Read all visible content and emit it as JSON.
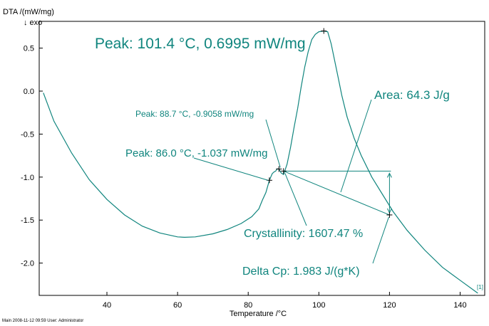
{
  "chart_data": {
    "type": "line",
    "ylabel": "DTA /(mW/mg)",
    "ylabel_sub": "↓ exo",
    "xlabel": "Temperature /°C",
    "xlim": [
      22,
      145
    ],
    "ylim": [
      -2.4,
      0.8
    ],
    "xticks": [
      40,
      60,
      80,
      100,
      120,
      140
    ],
    "xtick_labels": [
      "40",
      "60",
      "80",
      "100",
      "120",
      "140"
    ],
    "yticks": [
      0.5,
      0.0,
      -0.5,
      -1.0,
      -1.5,
      -2.0
    ],
    "ytick_labels": [
      "0.5",
      "0.0",
      "-0.5",
      "-1.0",
      "-1.5",
      "-2.0"
    ],
    "grid": false,
    "color": "#10857e",
    "series": [
      {
        "x": [
          22,
          25,
          30,
          35,
          40,
          45,
          50,
          55,
          60,
          62,
          65,
          70,
          74,
          78,
          81,
          83,
          84,
          85,
          86,
          86.8,
          87.3,
          87.8,
          88.2,
          88.7,
          89.3,
          90,
          91,
          92,
          93,
          94,
          95,
          96,
          97,
          98,
          99,
          100,
          101.4,
          102.5,
          103.5,
          104.5,
          105.5,
          106.5,
          108,
          110,
          112,
          115,
          118,
          121,
          125,
          130,
          135,
          140,
          145
        ],
        "y": [
          -0.02,
          -0.35,
          -0.72,
          -1.03,
          -1.26,
          -1.44,
          -1.57,
          -1.65,
          -1.695,
          -1.7,
          -1.695,
          -1.66,
          -1.61,
          -1.54,
          -1.46,
          -1.37,
          -1.27,
          -1.18,
          -1.037,
          -0.96,
          -0.94,
          -0.93,
          -0.905,
          -0.9058,
          -0.95,
          -0.97,
          -0.85,
          -0.65,
          -0.42,
          -0.2,
          0.05,
          0.28,
          0.46,
          0.6,
          0.66,
          0.69,
          0.6995,
          0.69,
          0.55,
          0.35,
          0.15,
          -0.05,
          -0.3,
          -0.55,
          -0.75,
          -1.0,
          -1.2,
          -1.4,
          -1.62,
          -1.85,
          -2.05,
          -2.2,
          -2.35
        ]
      }
    ],
    "annotations": [
      {
        "text": "Peak: 101.4 °C, 0.6995 mW/mg",
        "x": 101.4,
        "y": 0.6995
      },
      {
        "text": "Peak: 88.7 °C, -0.9058 mW/mg",
        "x": 88.7,
        "y": -0.9058
      },
      {
        "text": "Peak: 86.0 °C, -1.037 mW/mg",
        "x": 86.0,
        "y": -1.037
      },
      {
        "text": "Area: 64.3 J/g"
      },
      {
        "text": "Crystallinity: 1607.47 %"
      },
      {
        "text": "Delta Cp: 1.983 J/(g*K)"
      }
    ],
    "curve_tag": "[1]",
    "footer": "Main   2008-11-12 09:59   User: Administrator"
  }
}
